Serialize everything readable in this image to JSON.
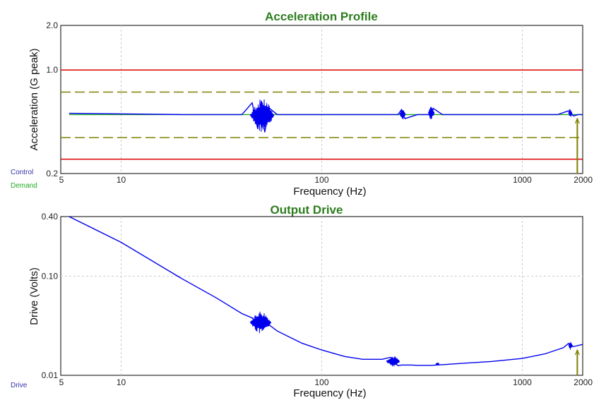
{
  "chart_data": [
    {
      "type": "line",
      "title": "Acceleration Profile",
      "xlabel": "Frequency (Hz)",
      "ylabel": "Acceleration (G peak)",
      "x_scale": "log",
      "y_scale": "log",
      "xlim": [
        5,
        2000
      ],
      "ylim": [
        0.2,
        2.0
      ],
      "x_ticks": [
        {
          "value": 5,
          "label": "5"
        },
        {
          "value": 10,
          "label": "10"
        },
        {
          "value": 100,
          "label": "100"
        },
        {
          "value": 1000,
          "label": "1000"
        },
        {
          "value": 2000,
          "label": "2000"
        }
      ],
      "y_ticks": [
        {
          "value": 0.2,
          "label": "0.2"
        },
        {
          "value": 1.0,
          "label": "1.0"
        },
        {
          "value": 2.0,
          "label": "2.0"
        }
      ],
      "grid": true,
      "legend": [
        {
          "label": "Control",
          "color": "#3333aa"
        },
        {
          "label": "Demand",
          "color": "#22aa22"
        }
      ],
      "reference_lines": [
        {
          "y": 1.0,
          "color": "#dd0000",
          "style": "solid"
        },
        {
          "y": 0.71,
          "color": "#808000",
          "style": "dashed"
        },
        {
          "y": 0.35,
          "color": "#808000",
          "style": "dashed"
        },
        {
          "y": 0.25,
          "color": "#dd0000",
          "style": "solid"
        }
      ],
      "series": [
        {
          "name": "Control",
          "color": "#0000ee",
          "base": 0.5,
          "x": [
            5.5,
            20,
            40,
            45,
            48,
            50,
            52,
            55,
            60,
            100,
            240,
            250,
            260,
            300,
            350,
            360,
            400,
            1000,
            1500,
            1700,
            1800,
            1900,
            2000
          ],
          "y": [
            0.51,
            0.5,
            0.5,
            0.6,
            0.4,
            0.62,
            0.38,
            0.55,
            0.5,
            0.5,
            0.5,
            0.54,
            0.47,
            0.5,
            0.5,
            0.55,
            0.5,
            0.5,
            0.5,
            0.53,
            0.49,
            0.5,
            0.5
          ],
          "bursts": [
            {
              "x_from": 44,
              "x_to": 58,
              "y_min": 0.38,
              "y_max": 0.64
            },
            {
              "x_from": 245,
              "x_to": 262,
              "y_min": 0.46,
              "y_max": 0.55
            },
            {
              "x_from": 340,
              "x_to": 365,
              "y_min": 0.46,
              "y_max": 0.57
            },
            {
              "x_from": 1700,
              "x_to": 1770,
              "y_min": 0.47,
              "y_max": 0.55
            }
          ]
        },
        {
          "name": "Demand",
          "color": "#22aa22",
          "x": [
            5.5,
            2000
          ],
          "y": [
            0.5,
            0.5
          ]
        }
      ],
      "marker": {
        "x": 1880,
        "y_top": 0.47,
        "y_bottom": 0.2,
        "color": "#808000"
      }
    },
    {
      "type": "line",
      "title": "Output Drive",
      "xlabel": "Frequency (Hz)",
      "ylabel": "Drive (Volts)",
      "x_scale": "log",
      "y_scale": "log",
      "xlim": [
        5,
        2000
      ],
      "ylim": [
        0.01,
        0.4
      ],
      "x_ticks": [
        {
          "value": 5,
          "label": "5"
        },
        {
          "value": 10,
          "label": "10"
        },
        {
          "value": 100,
          "label": "100"
        },
        {
          "value": 1000,
          "label": "1000"
        },
        {
          "value": 2000,
          "label": "2000"
        }
      ],
      "y_ticks": [
        {
          "value": 0.01,
          "label": "0.01"
        },
        {
          "value": 0.1,
          "label": "0.10"
        },
        {
          "value": 0.4,
          "label": "0.40"
        }
      ],
      "grid": true,
      "legend": [
        {
          "label": "Drive",
          "color": "#3333aa"
        }
      ],
      "series": [
        {
          "name": "Drive",
          "color": "#0000ee",
          "x": [
            5.5,
            10,
            20,
            30,
            40,
            45,
            50,
            55,
            60,
            70,
            80,
            100,
            130,
            160,
            200,
            220,
            240,
            250,
            280,
            300,
            350,
            400,
            500,
            700,
            1000,
            1300,
            1600,
            1700,
            1800,
            2000
          ],
          "y": [
            0.4,
            0.22,
            0.095,
            0.06,
            0.042,
            0.038,
            0.03,
            0.032,
            0.028,
            0.024,
            0.021,
            0.018,
            0.0155,
            0.0145,
            0.0145,
            0.0152,
            0.0125,
            0.0127,
            0.0127,
            0.0126,
            0.0126,
            0.0128,
            0.0132,
            0.0138,
            0.0148,
            0.0165,
            0.019,
            0.021,
            0.0195,
            0.0205
          ],
          "bursts": [
            {
              "x_from": 44,
              "x_to": 56,
              "y_min": 0.026,
              "y_max": 0.045
            },
            {
              "x_from": 210,
              "x_to": 245,
              "y_min": 0.0122,
              "y_max": 0.0158
            },
            {
              "x_from": 370,
              "x_to": 385,
              "y_min": 0.0124,
              "y_max": 0.0135
            },
            {
              "x_from": 1700,
              "x_to": 1780,
              "y_min": 0.018,
              "y_max": 0.022
            }
          ]
        }
      ],
      "marker": {
        "x": 1880,
        "y_top": 0.018,
        "y_bottom": 0.01,
        "color": "#808000"
      }
    }
  ]
}
